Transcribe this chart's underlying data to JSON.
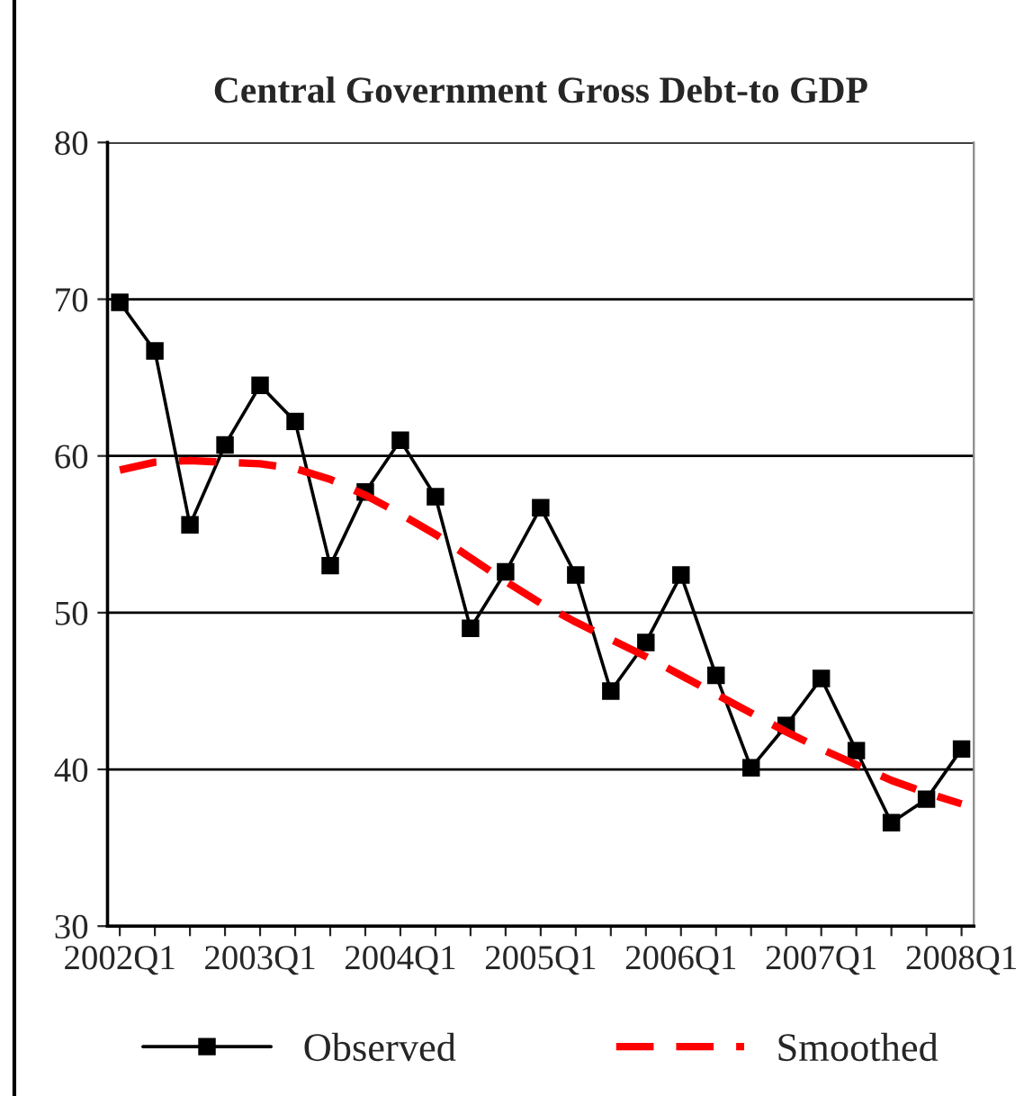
{
  "chart_data": {
    "type": "line",
    "title": "Central Government Gross Debt-to GDP",
    "categories": [
      "2002Q1",
      null,
      null,
      null,
      "2003Q1",
      null,
      null,
      null,
      "2004Q1",
      null,
      null,
      null,
      "2005Q1",
      null,
      null,
      null,
      "2006Q1",
      null,
      null,
      null,
      "2007Q1",
      null,
      null,
      null,
      "2008Q1"
    ],
    "series": [
      {
        "name": "Observed",
        "color": "#000000",
        "marker": "square",
        "line_style": "solid",
        "values": [
          69.8,
          66.7,
          55.6,
          60.7,
          64.5,
          62.2,
          53.0,
          57.7,
          61.0,
          57.4,
          49.0,
          52.6,
          56.7,
          52.4,
          45.0,
          48.1,
          52.4,
          46.0,
          40.1,
          42.8,
          45.8,
          41.2,
          36.6,
          38.1,
          41.3
        ]
      },
      {
        "name": "Smoothed",
        "color": "#ff0000",
        "marker": "none",
        "line_style": "dashed",
        "values": [
          59.1,
          59.6,
          59.7,
          59.6,
          59.5,
          59.2,
          58.5,
          57.5,
          56.3,
          55.0,
          53.5,
          52.0,
          50.6,
          49.4,
          48.3,
          47.2,
          46.0,
          44.8,
          43.6,
          42.4,
          41.3,
          40.3,
          39.3,
          38.5,
          37.8
        ]
      }
    ],
    "ylim": [
      30,
      80
    ],
    "yticks": [
      30,
      40,
      50,
      60,
      70,
      80
    ],
    "grid": "y",
    "legend": "bottom"
  }
}
